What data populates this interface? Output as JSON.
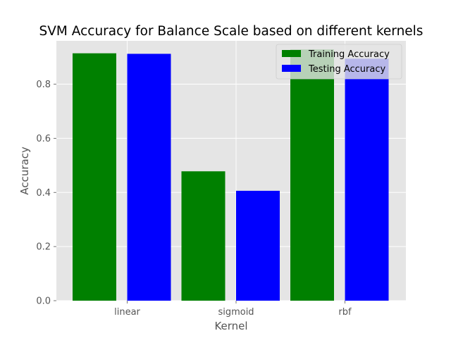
{
  "chart_data": {
    "type": "bar",
    "title": "SVM Accuracy for Balance Scale based on different kernels",
    "xlabel": "Kernel",
    "ylabel": "Accuracy",
    "categories": [
      "linear",
      "sigmoid",
      "rbf"
    ],
    "series": [
      {
        "name": "Training Accuracy",
        "color": "#008000",
        "values": [
          0.914,
          0.478,
          0.928
        ]
      },
      {
        "name": "Testing Accuracy",
        "color": "#0000ff",
        "values": [
          0.912,
          0.406,
          0.894
        ]
      }
    ],
    "ylim": [
      0,
      0.96
    ],
    "yticks": [
      0.0,
      0.2,
      0.4,
      0.6,
      0.8
    ],
    "ytick_labels": [
      "0.0",
      "0.2",
      "0.4",
      "0.6",
      "0.8"
    ],
    "grid": true,
    "legend_position": "top-right",
    "style": {
      "plot_background": "#e5e5e5",
      "grid_color": "#ffffff",
      "text_color": "#555555",
      "title_color": "#000000"
    }
  }
}
